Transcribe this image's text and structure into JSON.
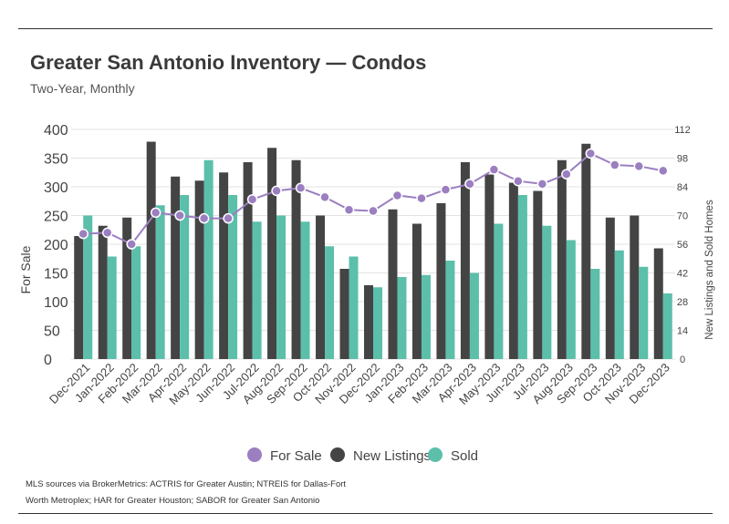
{
  "title": "Greater San Antonio Inventory — Condos",
  "subtitle": "Two-Year, Monthly",
  "footer": {
    "line1": "MLS sources via BrokerMetrics: ACTRIS for Greater Austin; NTREIS for Dallas-Fort",
    "line2": "Worth Metroplex; HAR for Greater Houston; SABOR for Greater San Antonio"
  },
  "colors": {
    "for_sale": "#9b7fc0",
    "new_listings": "#444444",
    "sold": "#5bbfaa",
    "grid": "#e3e3e3"
  },
  "chart_data": {
    "type": "bar",
    "categories": [
      "Dec-2021",
      "Jan-2022",
      "Feb-2022",
      "Mar-2022",
      "Apr-2022",
      "May-2022",
      "Jun-2022",
      "Jul-2022",
      "Aug-2022",
      "Sep-2022",
      "Oct-2022",
      "Nov-2022",
      "Dec-2022",
      "Jan-2023",
      "Feb-2023",
      "Mar-2023",
      "Apr-2023",
      "May-2023",
      "Jun-2023",
      "Jul-2023",
      "Aug-2023",
      "Sep-2023",
      "Oct-2023",
      "Nov-2023",
      "Dec-2023"
    ],
    "left_axis": {
      "label": "For Sale",
      "ticks": [
        0,
        50,
        100,
        150,
        200,
        250,
        300,
        350,
        400
      ],
      "min": 0,
      "max": 400
    },
    "right_axis": {
      "label": "New Listings and Sold Homes",
      "ticks": [
        0,
        14,
        28,
        42,
        56,
        70,
        84,
        98,
        112
      ],
      "min": 0,
      "max": 112
    },
    "series": [
      {
        "name": "For Sale",
        "kind": "line",
        "axis": "left",
        "values": [
          218,
          220,
          200,
          255,
          250,
          245,
          245,
          278,
          293,
          298,
          282,
          260,
          258,
          285,
          280,
          295,
          305,
          330,
          310,
          305,
          322,
          358,
          338,
          336,
          328
        ]
      },
      {
        "name": "New Listings",
        "kind": "bar",
        "axis": "right",
        "values": [
          60,
          65,
          69,
          106,
          89,
          87,
          91,
          96,
          103,
          97,
          70,
          44,
          36,
          73,
          66,
          76,
          96,
          90,
          86,
          82,
          97,
          105,
          69,
          70,
          54
        ]
      },
      {
        "name": "Sold",
        "kind": "bar",
        "axis": "right",
        "values": [
          70,
          50,
          55,
          75,
          80,
          97,
          80,
          67,
          70,
          67,
          55,
          50,
          35,
          40,
          41,
          48,
          42,
          66,
          80,
          65,
          58,
          44,
          53,
          45,
          32
        ]
      }
    ],
    "legend": {
      "position": "bottom",
      "items": [
        "For Sale",
        "New Listings",
        "Sold"
      ]
    },
    "grid": true
  }
}
